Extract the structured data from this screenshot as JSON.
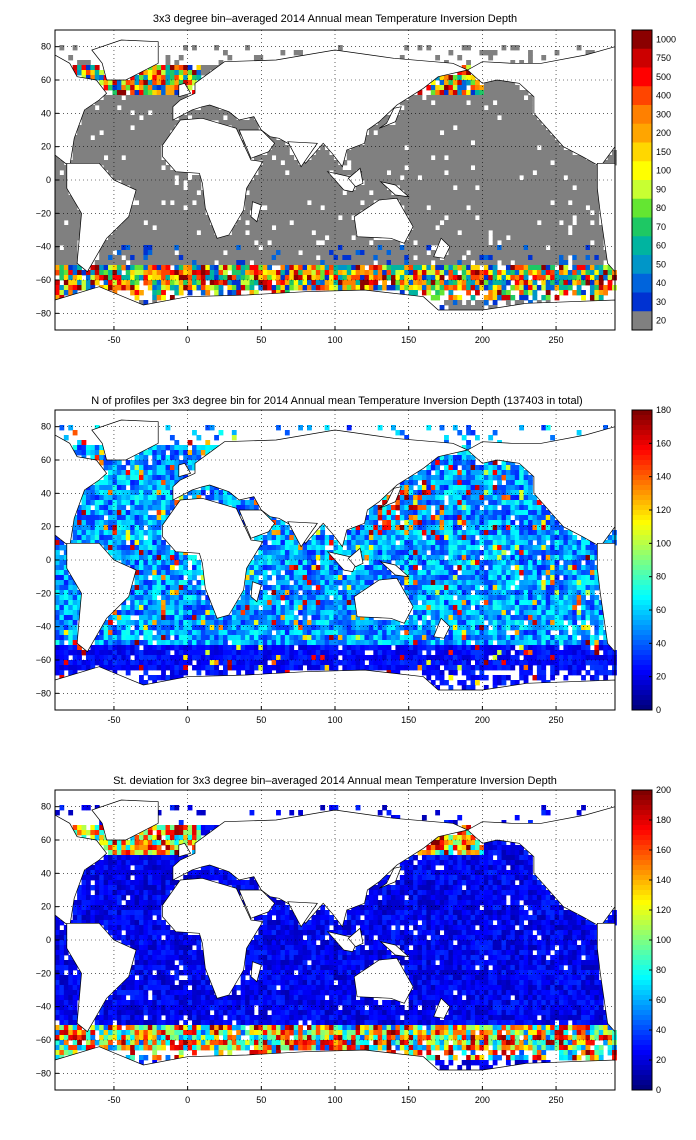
{
  "chart_data": [
    {
      "type": "heatmap",
      "title": "3x3 degree bin–averaged 2014 Annual mean Temperature Inversion Depth",
      "xlabel": "",
      "ylabel": "",
      "xlim": [
        -90,
        290
      ],
      "ylim": [
        -90,
        90
      ],
      "x_ticks": [
        "-50",
        "0",
        "50",
        "100",
        "150",
        "200",
        "250"
      ],
      "y_ticks": [
        "80",
        "60",
        "40",
        "20",
        "0",
        "−20",
        "−40",
        "−60",
        "−80"
      ],
      "grid": true,
      "colorbar": {
        "type": "discrete",
        "labels": [
          "1000",
          "750",
          "500",
          "400",
          "300",
          "200",
          "150",
          "100",
          "90",
          "80",
          "70",
          "60",
          "50",
          "40",
          "30",
          "20"
        ],
        "colors": [
          "#8B0000",
          "#CC0000",
          "#FF0000",
          "#FF4500",
          "#FF8000",
          "#FFA500",
          "#FFD700",
          "#FFFF00",
          "#C8FF32",
          "#64E632",
          "#1EC864",
          "#00B4A0",
          "#0096C8",
          "#0064DC",
          "#0032D2",
          "#808080"
        ]
      },
      "description_regions": [
        {
          "region": "most open ocean",
          "value_class": "20"
        },
        {
          "region": "Southern Ocean band 55S-70S",
          "value_class": "mixed 30-1000"
        },
        {
          "region": "North Atlantic / Nordic seas 55N-65N",
          "value_class": "mixed 100-1000"
        },
        {
          "region": "Bering Sea / Kuril region 50N-60N",
          "value_class": "mixed 100-500"
        }
      ]
    },
    {
      "type": "heatmap",
      "title": "N of profiles per 3x3 degree bin for 2014 Annual mean Temperature Inversion Depth  (137403 in total)",
      "xlabel": "",
      "ylabel": "",
      "xlim": [
        -90,
        290
      ],
      "ylim": [
        -90,
        90
      ],
      "x_ticks": [
        "-50",
        "0",
        "50",
        "100",
        "150",
        "200",
        "250"
      ],
      "y_ticks": [
        "80",
        "60",
        "40",
        "20",
        "0",
        "−20",
        "−40",
        "−60",
        "−80"
      ],
      "grid": true,
      "colorbar": {
        "type": "continuous",
        "colormap": "jet",
        "range": [
          0,
          180
        ],
        "labels": [
          "180",
          "160",
          "140",
          "120",
          "100",
          "80",
          "60",
          "40",
          "20",
          "0"
        ]
      },
      "total_profiles": 137403
    },
    {
      "type": "heatmap",
      "title": "St. deviation for 3x3 degree bin–averaged 2014 Annual mean Temperature Inversion Depth",
      "xlabel": "",
      "ylabel": "",
      "xlim": [
        -90,
        290
      ],
      "ylim": [
        -90,
        90
      ],
      "x_ticks": [
        "-50",
        "0",
        "50",
        "100",
        "150",
        "200",
        "250"
      ],
      "y_ticks": [
        "80",
        "60",
        "40",
        "20",
        "0",
        "−20",
        "−40",
        "−60",
        "−80"
      ],
      "grid": true,
      "colorbar": {
        "type": "continuous",
        "colormap": "jet",
        "range": [
          0,
          200
        ],
        "labels": [
          "200",
          "180",
          "160",
          "140",
          "120",
          "100",
          "80",
          "60",
          "40",
          "20",
          "0"
        ]
      }
    }
  ],
  "colors": {
    "missing": "#ffffff",
    "land_outline": "#000000",
    "grid": "#000000",
    "no_inversion": "#808080"
  }
}
